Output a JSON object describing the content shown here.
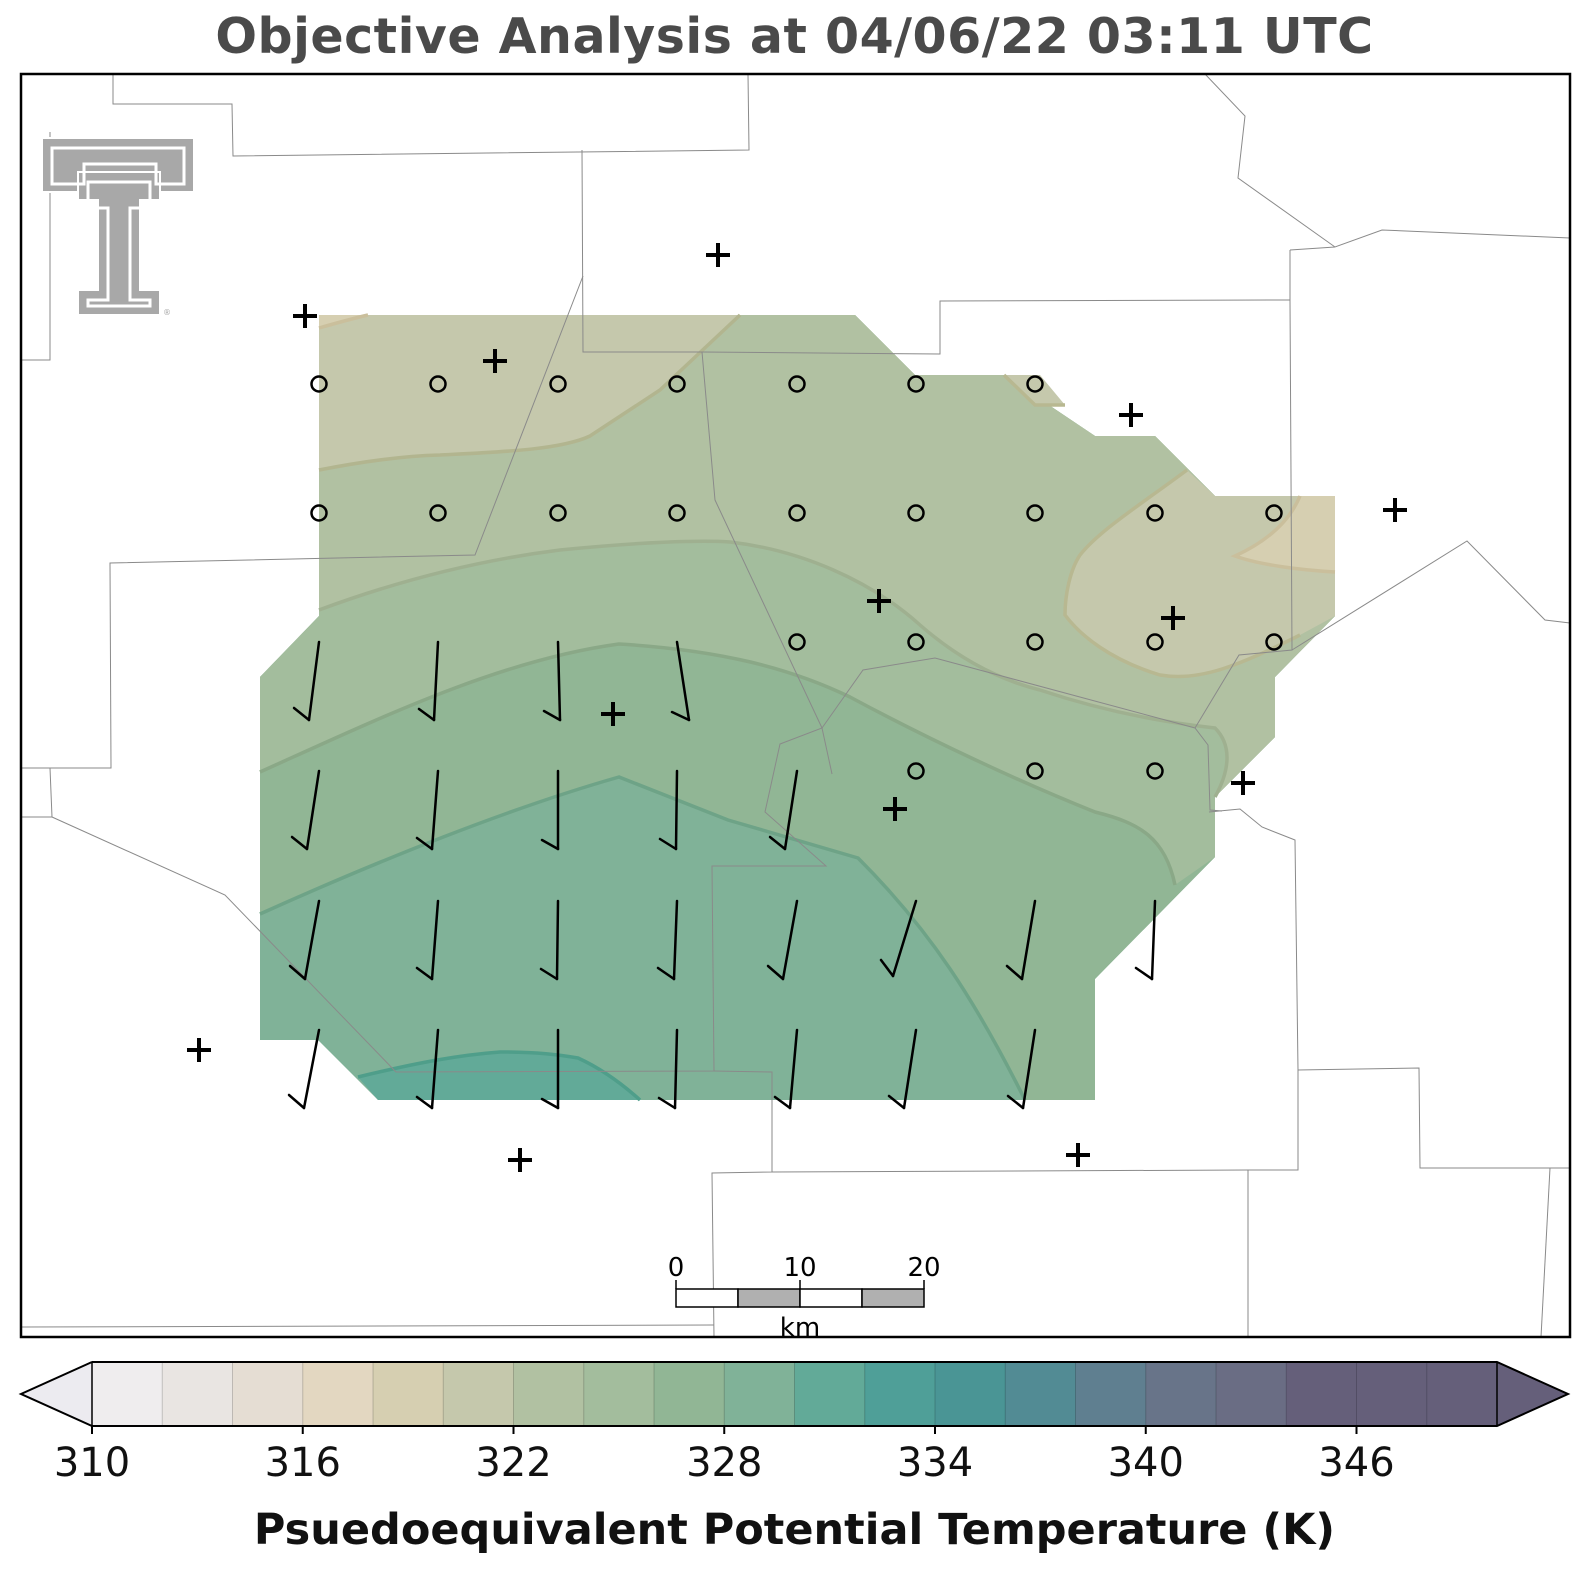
{
  "title": "Objective Analysis at 04/06/22 03:11 UTC",
  "logo": {
    "name": "texas-tech-double-t-logo",
    "mark": "®"
  },
  "scale_bar": {
    "labels": [
      "0",
      "10",
      "20"
    ],
    "unit": "km"
  },
  "colorbar": {
    "label": "Psuedoequivalent Potential Temperature (K)",
    "min": 310,
    "max": 350,
    "step": 2,
    "tick_labels": [
      "310",
      "316",
      "322",
      "328",
      "334",
      "340",
      "346"
    ],
    "tick_values": [
      310,
      316,
      322,
      328,
      334,
      340,
      346
    ],
    "colors": [
      "#ecebf0",
      "#efedee",
      "#e9e5e2",
      "#e5ddd3",
      "#e3d7c1",
      "#d6cfb1",
      "#c5c8ac",
      "#b1c1a2",
      "#a3bd9d",
      "#91b695",
      "#80b298",
      "#62aa98",
      "#4f9f98",
      "#4a9595",
      "#528b94",
      "#5f7f90",
      "#687489",
      "#6a6d84",
      "#655f7a"
    ]
  },
  "stations_symbol": "+",
  "legend_symbols": {
    "missing_wind": "o",
    "wind_barb": "barb"
  }
}
